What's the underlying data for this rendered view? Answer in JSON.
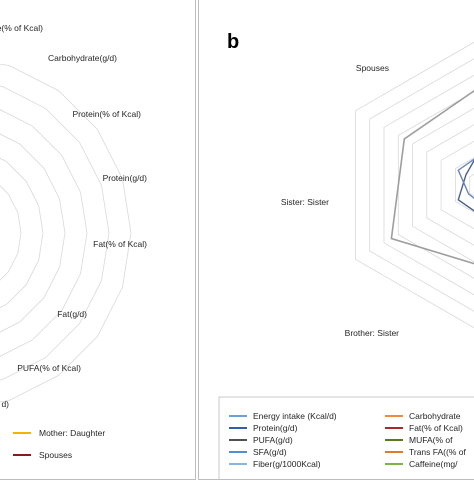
{
  "panel_a": {
    "chart_data": {
      "type": "radar",
      "axis_labels_visible": [
        "ydrate(% of Kcal)",
        "Carbohydrate(g/d)",
        "Protein(% of Kcal)",
        "Protein(g/d)",
        "Fat(% of Kcal)",
        "Fat(g/d)",
        "PUFA(% of Kcal)",
        "d)"
      ],
      "grid_rings": 8,
      "legend": [
        {
          "name": "Mother: Daughter",
          "color": "#f5b300"
        },
        {
          "name": "Spouses",
          "color": "#8b1a1a"
        }
      ]
    }
  },
  "panel_b": {
    "letter": "b",
    "chart_data": {
      "type": "radar",
      "axes": [
        "Spouses",
        "",
        "",
        "",
        "Brother: Sister",
        "Sister: Sister"
      ],
      "grid_rings": 9,
      "series_note_colors": [
        "#9e9e9e",
        "#4a5f8a",
        "#6a86b5"
      ],
      "legend": [
        {
          "name": "Energy intake (Kcal/d)",
          "color": "#6aa0d8"
        },
        {
          "name": "Carbohydrate",
          "color": "#f08a3c"
        },
        {
          "name": "Protein(g/d)",
          "color": "#2e5fa8"
        },
        {
          "name": "Fat(% of Kcal)",
          "color": "#a52a2a"
        },
        {
          "name": "PUFA(g/d)",
          "color": "#505050"
        },
        {
          "name": "MUFA(% of",
          "color": "#5a7a1f"
        },
        {
          "name": "SFA(g/d)",
          "color": "#4f8fd1"
        },
        {
          "name": "Trans FA((% of",
          "color": "#e07b2e"
        },
        {
          "name": "Fiber(g/1000Kcal)",
          "color": "#8ab4e0"
        },
        {
          "name": "Caffeine(mg/",
          "color": "#7cb342"
        }
      ]
    }
  }
}
